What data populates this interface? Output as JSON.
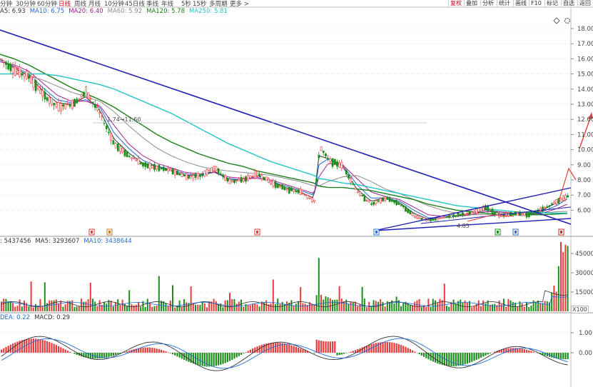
{
  "toolbar": {
    "periods": [
      "分钟",
      "30分钟",
      "60分钟",
      "日线",
      "周线",
      "月线",
      "10分钟",
      "45日线",
      "季线",
      "年线",
      "5秒",
      "15秒",
      "多周期",
      "更多 >"
    ],
    "active_period": "日线",
    "right_buttons": [
      "复权",
      "叠加",
      "分析",
      "统计",
      "画线",
      "F10",
      "标记",
      "自选",
      "返回"
    ],
    "highlight_button": "复权"
  },
  "icons": [
    "diamond-icon",
    "gear-icon"
  ],
  "ma_legend": [
    {
      "text": "A5: 6.93",
      "color": "#333333"
    },
    {
      "text": "MA10: 6.75",
      "color": "#1f6bd6"
    },
    {
      "text": "MA20: 6.40",
      "color": "#a0208f"
    },
    {
      "text": "MA60: 5.92",
      "color": "#8c8c8c"
    },
    {
      "text": "MA120: 5.78",
      "color": "#1a7f1a"
    },
    {
      "text": "MA250: 5.81",
      "color": "#22c4c4"
    }
  ],
  "price_axis": [
    "18.00",
    "17.00",
    "16.00",
    "15.00",
    "14.00",
    "13.00",
    "12.00",
    "11.00",
    "10.00",
    "9.00",
    "8.00",
    "7.00",
    "6.00"
  ],
  "vol_legend": [
    {
      "text": ": 5437456",
      "color": "#333333"
    },
    {
      "text": "MA5: 3293607",
      "color": "#333333"
    },
    {
      "text": "MA10: 3438644",
      "color": "#1f6bd6"
    }
  ],
  "vol_axis": [
    "45000",
    "30000",
    "15000"
  ],
  "vol_unit": "X100",
  "macd_legend": [
    {
      "text": "DEA: 0.22",
      "color": "#1f6bd6"
    },
    {
      "text": "MACD: 0.29",
      "color": "#333333"
    }
  ],
  "macd_axis": [
    "1.00",
    "0.00"
  ],
  "annotations": {
    "high_label": "1.74→11.60",
    "low_label": "4.85"
  },
  "colors": {
    "up": "#e83b3b",
    "down": "#1a8f1a",
    "trend": "#1f1fb0",
    "arrow": "#e83b3b",
    "ma250": "#22c4c4"
  },
  "chart_data": [
    {
      "type": "candlestick",
      "title": "",
      "y_axis_ticks": [
        18,
        17,
        16,
        15,
        14,
        13,
        12,
        11,
        10,
        9,
        8,
        7,
        6
      ],
      "ylim": [
        5.0,
        18.5
      ],
      "close_path_x": [
        0,
        20,
        40,
        60,
        80,
        100,
        120,
        140,
        160,
        180,
        200,
        220,
        240,
        260,
        280,
        300,
        320,
        340,
        360,
        380,
        400,
        420,
        440,
        447,
        460,
        480,
        500,
        520,
        540,
        560,
        580,
        600,
        620,
        640,
        660,
        680,
        700,
        720,
        740,
        760,
        780,
        795
      ],
      "close_path": [
        16.0,
        15.2,
        14.8,
        13.6,
        12.8,
        13.0,
        13.8,
        12.3,
        10.3,
        9.6,
        9.0,
        8.8,
        8.6,
        8.2,
        8.3,
        8.8,
        7.9,
        8.0,
        8.4,
        7.8,
        7.4,
        7.2,
        6.6,
        10.2,
        9.3,
        8.9,
        7.2,
        6.4,
        6.8,
        6.4,
        5.6,
        5.3,
        5.5,
        5.7,
        5.8,
        6.2,
        5.6,
        5.8,
        5.7,
        6.1,
        6.6,
        6.9
      ],
      "ma_series": [
        {
          "name": "MA5",
          "values": [
            16.0,
            15.4,
            14.9,
            13.9,
            13.1,
            13.0,
            13.5,
            12.6,
            10.7,
            9.8,
            9.1,
            8.9,
            8.6,
            8.3,
            8.3,
            8.6,
            8.0,
            8.0,
            8.3,
            7.9,
            7.5,
            7.2,
            6.8,
            9.6,
            9.4,
            8.9,
            7.4,
            6.6,
            6.8,
            6.5,
            5.8,
            5.4,
            5.5,
            5.6,
            5.8,
            6.1,
            5.8,
            5.8,
            5.7,
            6.0,
            6.5,
            6.9
          ]
        },
        {
          "name": "MA10",
          "values": [
            15.9,
            15.5,
            15.0,
            14.1,
            13.3,
            13.1,
            13.3,
            12.8,
            11.1,
            10.1,
            9.3,
            8.9,
            8.7,
            8.4,
            8.3,
            8.5,
            8.1,
            8.0,
            8.2,
            7.9,
            7.6,
            7.3,
            7.0,
            9.0,
            9.4,
            9.0,
            7.7,
            6.8,
            6.8,
            6.6,
            6.0,
            5.5,
            5.5,
            5.6,
            5.7,
            6.0,
            5.9,
            5.8,
            5.7,
            5.9,
            6.3,
            6.75
          ]
        },
        {
          "name": "MA20",
          "values": [
            15.8,
            15.6,
            15.2,
            14.4,
            13.6,
            13.2,
            13.2,
            12.9,
            11.6,
            10.4,
            9.6,
            9.1,
            8.8,
            8.5,
            8.4,
            8.5,
            8.2,
            8.1,
            8.1,
            8.0,
            7.7,
            7.4,
            7.1,
            8.2,
            9.1,
            9.0,
            8.1,
            7.2,
            6.9,
            6.7,
            6.2,
            5.7,
            5.6,
            5.6,
            5.7,
            5.9,
            5.9,
            5.8,
            5.7,
            5.8,
            6.1,
            6.4
          ]
        },
        {
          "name": "MA60",
          "values": [
            15.0,
            15.0,
            14.9,
            14.6,
            14.2,
            13.8,
            13.5,
            13.2,
            12.5,
            11.6,
            10.8,
            10.1,
            9.6,
            9.2,
            8.9,
            8.7,
            8.6,
            8.5,
            8.4,
            8.3,
            8.1,
            7.9,
            7.6,
            7.6,
            7.9,
            8.2,
            8.3,
            7.9,
            7.4,
            7.1,
            6.7,
            6.3,
            6.0,
            5.8,
            5.7,
            5.7,
            5.8,
            5.8,
            5.8,
            5.8,
            5.9,
            5.92
          ]
        },
        {
          "name": "MA120",
          "values": [
            16.3,
            16.0,
            15.6,
            15.1,
            14.6,
            14.1,
            13.7,
            13.3,
            12.8,
            12.2,
            11.6,
            11.0,
            10.5,
            10.1,
            9.7,
            9.4,
            9.1,
            8.9,
            8.6,
            8.4,
            8.2,
            8.0,
            7.8,
            7.6,
            7.5,
            7.5,
            7.4,
            7.3,
            7.1,
            6.9,
            6.7,
            6.4,
            6.2,
            6.0,
            5.9,
            5.8,
            5.7,
            5.7,
            5.7,
            5.7,
            5.75,
            5.78
          ]
        },
        {
          "name": "MA250",
          "values": [
            15.0,
            15.0,
            15.0,
            15.0,
            14.9,
            14.7,
            14.5,
            14.3,
            14.0,
            13.6,
            13.2,
            12.8,
            12.4,
            11.9,
            11.4,
            10.9,
            10.4,
            10.0,
            9.6,
            9.2,
            8.9,
            8.6,
            8.3,
            8.1,
            8.0,
            7.8,
            7.7,
            7.5,
            7.3,
            7.1,
            6.9,
            6.7,
            6.5,
            6.3,
            6.2,
            6.1,
            6.0,
            5.9,
            5.85,
            5.82,
            5.81,
            5.81
          ]
        }
      ]
    },
    {
      "type": "bar",
      "title": "",
      "y_axis_ticks": [
        45000,
        30000,
        15000
      ],
      "note": "volume histogram with MA5/MA10 lines; final spike ~54374"
    },
    {
      "type": "bar",
      "title": "",
      "y_axis_ticks": [
        1.0,
        0.0
      ],
      "dea": 0.22,
      "macd": 0.29
    }
  ]
}
